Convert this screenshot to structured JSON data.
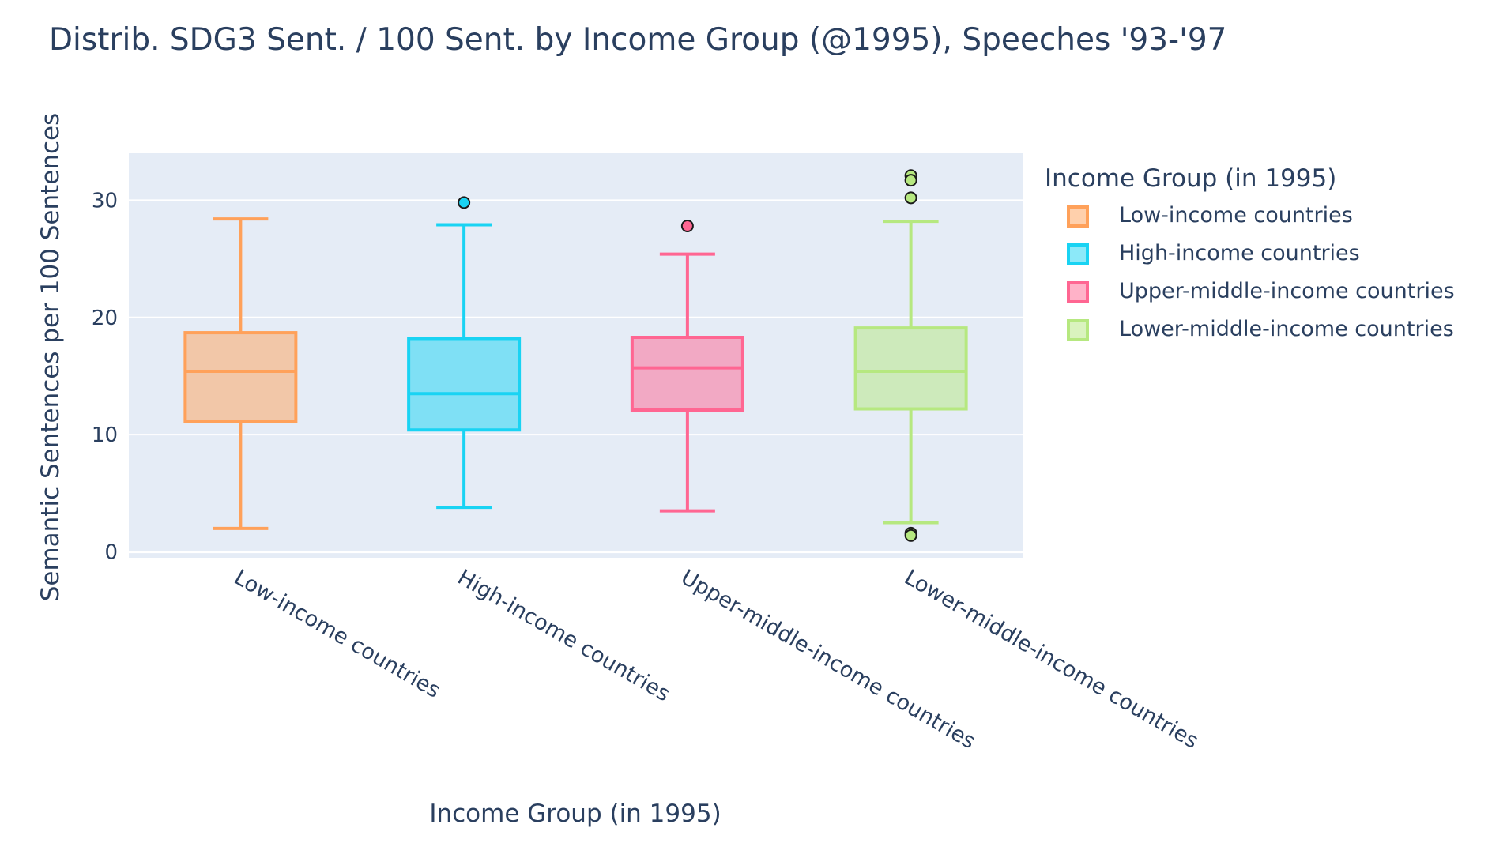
{
  "chart_data": {
    "type": "box",
    "title": "Distrib. SDG3 Sent. / 100 Sent. by Income Group (@1995), Speeches '93-'97",
    "xlabel": "Income Group (in 1995)",
    "ylabel": "Semantic Sentences per 100 Sentences",
    "ylim": [
      -0.5,
      34
    ],
    "yticks": [
      0,
      10,
      20,
      30
    ],
    "grid": true,
    "legend": {
      "title": "Income Group (in 1995)",
      "placement": "right"
    },
    "categories": [
      "Low-income countries",
      "High-income countries",
      "Upper-middle-income countries",
      "Lower-middle-income countries"
    ],
    "series": [
      {
        "name": "Low-income countries",
        "color": "#FFA15A",
        "min": 2.0,
        "q1": 11.1,
        "median": 15.4,
        "q3": 18.7,
        "max": 28.4,
        "outliers": []
      },
      {
        "name": "High-income countries",
        "color": "#19D3F3",
        "min": 3.8,
        "q1": 10.4,
        "median": 13.5,
        "q3": 18.2,
        "max": 27.9,
        "outliers": [
          29.8
        ]
      },
      {
        "name": "Upper-middle-income countries",
        "color": "#FF6692",
        "min": 3.5,
        "q1": 12.1,
        "median": 15.7,
        "q3": 18.3,
        "max": 25.4,
        "outliers": [
          27.8
        ]
      },
      {
        "name": "Lower-middle-income countries",
        "color": "#B6E880",
        "min": 2.5,
        "q1": 12.2,
        "median": 15.4,
        "q3": 19.1,
        "max": 28.2,
        "outliers": [
          32.1,
          31.7,
          30.2,
          1.6,
          1.4
        ]
      }
    ]
  }
}
